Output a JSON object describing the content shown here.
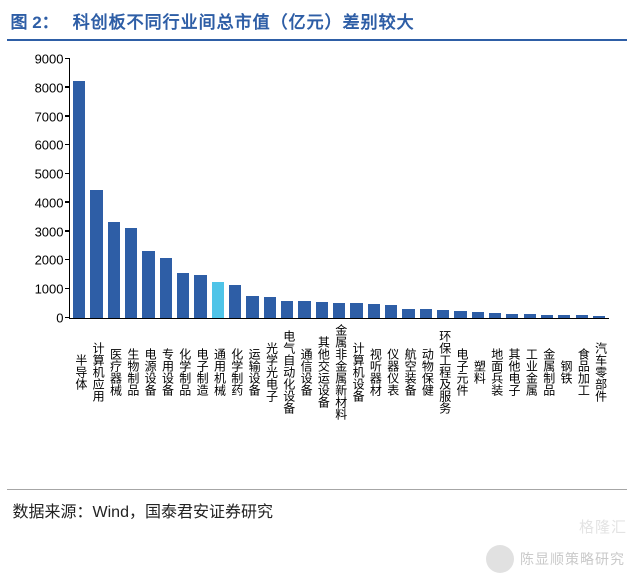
{
  "figure": {
    "label": "图 2：",
    "title": "科创板不同行业间总市值（亿元）差别较大",
    "title_border_color": "#2e5ea6",
    "title_color": "#2e5ea6",
    "source_label": "数据来源：",
    "source_value": "Wind，国泰君安证券研究"
  },
  "chart": {
    "type": "bar",
    "ylim": [
      0,
      9000
    ],
    "ytick_step": 1000,
    "yticks": [
      0,
      1000,
      2000,
      3000,
      4000,
      5000,
      6000,
      7000,
      8000,
      9000
    ],
    "tick_fontsize": 13,
    "label_fontsize": 12,
    "bar_default_color": "#2e5ea6",
    "bar_highlight_color": "#4fc4e8",
    "background_color": "#ffffff",
    "axis_color": "#000000",
    "bar_width_ratio": 0.8,
    "categories": [
      "半导体",
      "计算机应用",
      "医疗器械",
      "生物制品",
      "电源设备",
      "专用设备",
      "化学制品",
      "电子制造",
      "通用机械",
      "化学制药",
      "运输设备",
      "光学光电子",
      "电气自动化设备",
      "通信设备",
      "其他交运设备",
      "金属非金属新材料",
      "计算机设备",
      "视听器材",
      "仪器仪表",
      "航空装备",
      "动物保健",
      "环保工程及服务",
      "电子元件",
      "塑料",
      "地面兵装",
      "其他电子",
      "工业金属",
      "金属制品",
      "钢铁",
      "食品加工",
      "汽车零部件"
    ],
    "values": [
      8250,
      4450,
      3320,
      3120,
      2320,
      2080,
      1570,
      1480,
      1260,
      1130,
      760,
      720,
      600,
      580,
      560,
      530,
      510,
      470,
      450,
      320,
      300,
      270,
      250,
      210,
      170,
      150,
      130,
      110,
      100,
      95,
      80
    ],
    "highlight_index": 8
  },
  "watermark": {
    "author": "陈显顺策略研究",
    "corner": "格隆汇"
  }
}
